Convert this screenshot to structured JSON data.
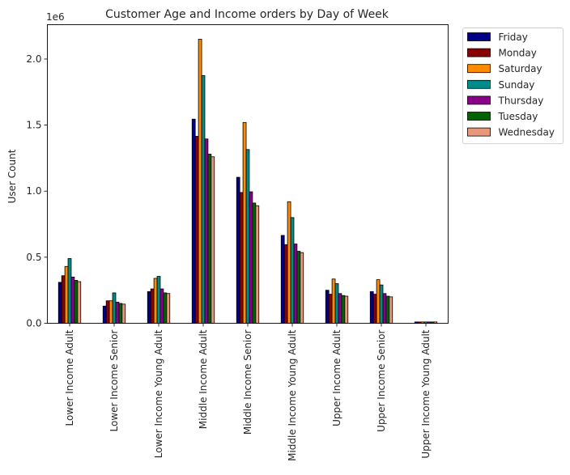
{
  "chart_data": {
    "type": "bar",
    "title": "Customer Age and Income orders by Day of Week",
    "xlabel": "",
    "ylabel": "User Count",
    "offset_label": "1e6",
    "ylim": [
      0,
      2.26
    ],
    "yticks": [
      {
        "value": 0.0,
        "label": "0.0"
      },
      {
        "value": 0.5,
        "label": "0.5"
      },
      {
        "value": 1.0,
        "label": "1.0"
      },
      {
        "value": 1.5,
        "label": "1.5"
      },
      {
        "value": 2.0,
        "label": "2.0"
      }
    ],
    "categories": [
      "Lower Income Adult",
      "Lower Income Senior",
      "Lower Income Young Adult",
      "Middle Income Adult",
      "Middle Income Senior",
      "Middle Income Young Adult",
      "Upper Income Adult",
      "Upper Income Senior",
      "Upper Income Young Adult"
    ],
    "legend_position": "outside-top-right",
    "grid": false,
    "series": [
      {
        "name": "Friday",
        "color": "#00008B",
        "values": [
          0.31,
          0.13,
          0.24,
          1.545,
          1.105,
          0.665,
          0.25,
          0.24,
          0.01
        ]
      },
      {
        "name": "Monday",
        "color": "#8B0000",
        "values": [
          0.36,
          0.17,
          0.26,
          1.415,
          0.99,
          0.595,
          0.22,
          0.22,
          0.01
        ]
      },
      {
        "name": "Saturday",
        "color": "#FF8C00",
        "values": [
          0.43,
          0.17,
          0.34,
          2.15,
          1.52,
          0.92,
          0.335,
          0.33,
          0.01
        ]
      },
      {
        "name": "Sunday",
        "color": "#008B8B",
        "values": [
          0.49,
          0.23,
          0.355,
          1.875,
          1.315,
          0.8,
          0.3,
          0.29,
          0.01
        ]
      },
      {
        "name": "Thursday",
        "color": "#8B008B",
        "values": [
          0.35,
          0.16,
          0.26,
          1.395,
          0.995,
          0.6,
          0.225,
          0.225,
          0.01
        ]
      },
      {
        "name": "Tuesday",
        "color": "#006400",
        "values": [
          0.325,
          0.15,
          0.23,
          1.28,
          0.91,
          0.545,
          0.21,
          0.205,
          0.01
        ]
      },
      {
        "name": "Wednesday",
        "color": "#E9967A",
        "values": [
          0.315,
          0.145,
          0.225,
          1.26,
          0.89,
          0.535,
          0.205,
          0.2,
          0.01
        ]
      }
    ]
  }
}
